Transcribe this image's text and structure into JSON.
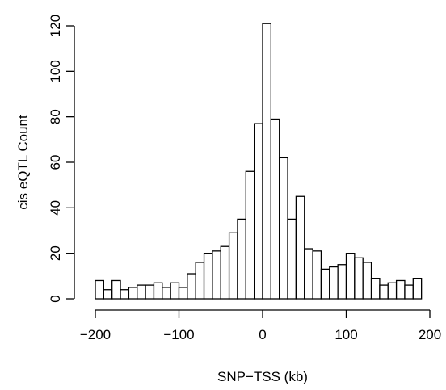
{
  "chart_data": {
    "type": "bar",
    "subtype": "histogram",
    "title": "",
    "xlabel": "SNP−TSS (kb)",
    "ylabel": "cis eQTL Count",
    "bin_width": 10,
    "bin_edges_start": [
      -200,
      -190,
      -180,
      -170,
      -160,
      -150,
      -140,
      -130,
      -120,
      -110,
      -100,
      -90,
      -80,
      -70,
      -60,
      -50,
      -40,
      -30,
      -20,
      -10,
      0,
      10,
      20,
      30,
      40,
      50,
      60,
      70,
      80,
      90,
      100,
      110,
      120,
      130,
      140,
      150,
      160,
      170,
      180,
      190
    ],
    "values": [
      8,
      4,
      8,
      4,
      5,
      6,
      6,
      7,
      5,
      7,
      5,
      11,
      16,
      20,
      21,
      23,
      29,
      35,
      56,
      77,
      121,
      79,
      62,
      35,
      45,
      22,
      21,
      13,
      14,
      15,
      20,
      18,
      16,
      9,
      6,
      7,
      8,
      6,
      9,
      0
    ],
    "xlim": [
      -200,
      200
    ],
    "ylim": [
      0,
      120
    ],
    "xticks": [
      -200,
      -100,
      0,
      100,
      200
    ],
    "xtick_labels": [
      "−200",
      "−100",
      "0",
      "100",
      "200"
    ],
    "yticks": [
      0,
      20,
      40,
      60,
      80,
      100,
      120
    ],
    "ytick_labels": [
      "0",
      "20",
      "40",
      "60",
      "80",
      "100",
      "120"
    ],
    "grid": false,
    "legend": "none",
    "bar_fill": "#ffffff",
    "bar_stroke": "#000000"
  }
}
